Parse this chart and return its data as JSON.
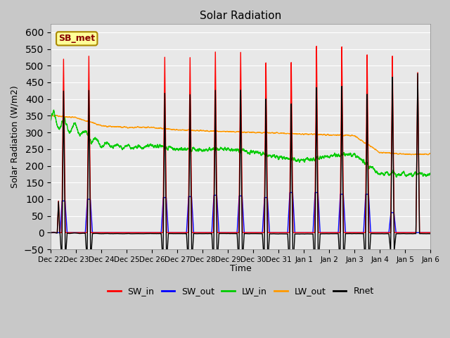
{
  "title": "Solar Radiation",
  "ylabel": "Solar Radiation (W/m2)",
  "xlabel": "Time",
  "ylim": [
    -50,
    625
  ],
  "yticks": [
    -50,
    0,
    50,
    100,
    150,
    200,
    250,
    300,
    350,
    400,
    450,
    500,
    550,
    600
  ],
  "fig_bg_color": "#c8c8c8",
  "plot_bg_color": "#e8e8e8",
  "annotation_text": "SB_met",
  "annotation_bg": "#ffff99",
  "annotation_border": "#aa8800",
  "lines": {
    "SW_in": {
      "color": "#ff0000",
      "lw": 1.0
    },
    "SW_out": {
      "color": "#0000ff",
      "lw": 1.0
    },
    "LW_in": {
      "color": "#00cc00",
      "lw": 1.0
    },
    "LW_out": {
      "color": "#ff9900",
      "lw": 1.0
    },
    "Rnet": {
      "color": "#000000",
      "lw": 1.0
    }
  },
  "n_days": 15,
  "start_day": 22,
  "points_per_day": 480,
  "sw_in_peaks": [
    520,
    530,
    0,
    0,
    530,
    530,
    548,
    548,
    515,
    515,
    563,
    560,
    535,
    530,
    480
  ],
  "sw_in_has_secondary": [
    true,
    false,
    false,
    false,
    false,
    false,
    false,
    false,
    false,
    false,
    false,
    false,
    false,
    false,
    false
  ],
  "sw_in_secondary_peak": [
    95,
    0,
    0,
    0,
    0,
    0,
    0,
    0,
    0,
    0,
    0,
    0,
    0,
    0,
    0
  ],
  "sw_out_peaks": [
    95,
    100,
    0,
    0,
    105,
    108,
    112,
    110,
    105,
    120,
    120,
    115,
    115,
    60,
    0
  ],
  "lw_in_base": [
    340,
    310,
    265,
    255,
    260,
    250,
    248,
    250,
    240,
    225,
    215,
    230,
    235,
    175,
    175
  ],
  "lw_out_base": [
    350,
    345,
    320,
    315,
    315,
    308,
    305,
    302,
    300,
    298,
    295,
    293,
    290,
    240,
    235
  ]
}
